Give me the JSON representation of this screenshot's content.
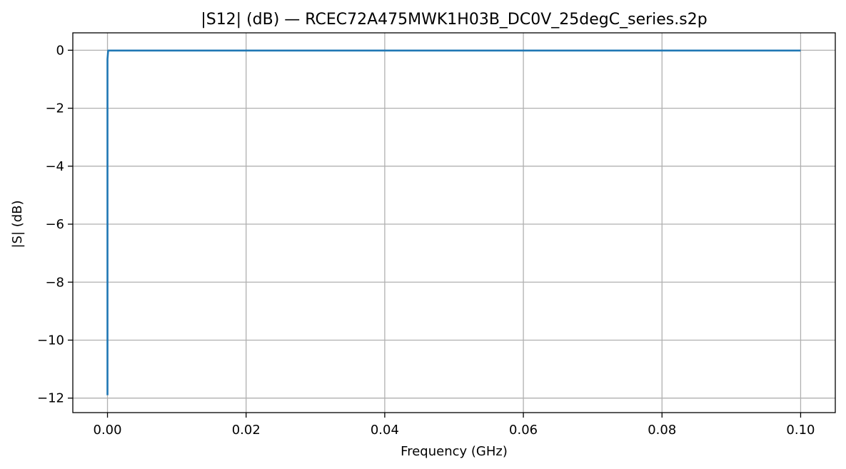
{
  "chart_data": {
    "type": "line",
    "title": "|S12| (dB) — RCEC72A475MWK1H03B_DC0V_25degC_series.s2p",
    "xlabel": "Frequency (GHz)",
    "ylabel": "|S| (dB)",
    "xlim": [
      -0.005,
      0.105
    ],
    "ylim": [
      -12.5,
      0.6
    ],
    "grid": true,
    "x_ticks": [
      0.0,
      0.02,
      0.04,
      0.06,
      0.08,
      0.1
    ],
    "x_tick_labels": [
      "0.00",
      "0.02",
      "0.04",
      "0.06",
      "0.08",
      "0.10"
    ],
    "y_ticks": [
      0,
      -2,
      -4,
      -6,
      -8,
      -10,
      -12
    ],
    "y_tick_labels": [
      "0",
      "−2",
      "−4",
      "−6",
      "−8",
      "−10",
      "−12"
    ],
    "series": [
      {
        "color": "#1f77b4",
        "x": [
          0.0,
          0.0,
          0.0001,
          0.1
        ],
        "y": [
          -11.9,
          -0.3,
          -0.01,
          -0.01
        ]
      }
    ]
  }
}
